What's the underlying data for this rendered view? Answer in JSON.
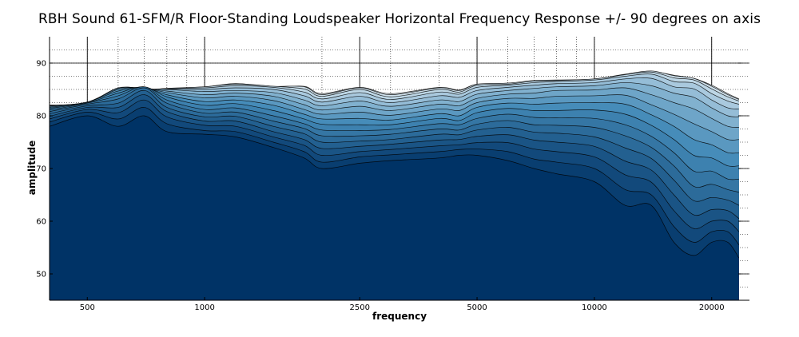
{
  "chart_data": {
    "type": "area",
    "title": "RBH Sound 61-SFM/R Floor-Standing Loudspeaker Horizontal Frequency Response +/- 90 degrees on axis",
    "xlabel": "frequency",
    "ylabel": "amplitude",
    "x_scale": "log",
    "xlim": [
      400,
      25000
    ],
    "ylim": [
      45,
      95
    ],
    "x_ticks": [
      500,
      1000,
      2500,
      5000,
      10000,
      20000
    ],
    "x_tick_labels": [
      "500",
      "1000",
      "2500",
      "5000",
      "10000",
      "20000"
    ],
    "y_ticks": [
      50,
      60,
      70,
      80,
      90
    ],
    "y_tick_labels": [
      "50",
      "60",
      "70",
      "80",
      "90"
    ],
    "grid": true,
    "colors": {
      "front": "#003366",
      "back": "#e4eef4",
      "line": "#000000"
    },
    "freqs": [
      400,
      500,
      600,
      700,
      800,
      1000,
      1200,
      1500,
      1800,
      2000,
      2500,
      3000,
      4000,
      4500,
      5000,
      6000,
      7000,
      8000,
      10000,
      12000,
      14000,
      16000,
      18000,
      20000,
      22000,
      23500
    ],
    "series": [
      {
        "values": [
          78,
          80,
          78,
          80,
          77,
          76.5,
          76,
          74,
          72,
          70,
          71,
          71.5,
          72,
          72.5,
          72.5,
          71.5,
          70,
          69,
          67.5,
          63,
          63,
          56,
          53.5,
          56,
          56,
          53
        ]
      },
      {
        "values": [
          78.8,
          80.7,
          79.4,
          81.6,
          78.5,
          77.2,
          77,
          75,
          73.2,
          71.2,
          72.2,
          72.6,
          73.2,
          73.6,
          73.7,
          73.2,
          71.8,
          71.2,
          70,
          66,
          65,
          59,
          56,
          58,
          58,
          55.5
        ]
      },
      {
        "values": [
          79.4,
          81.2,
          80.6,
          83,
          79.8,
          78.2,
          78,
          76,
          74.4,
          72.5,
          73.2,
          73.6,
          74.3,
          74.5,
          74.9,
          74.9,
          73.7,
          73.2,
          72.2,
          68.8,
          67.4,
          62,
          58.6,
          60,
          60,
          58
        ]
      },
      {
        "values": [
          79.9,
          81.6,
          81.6,
          84,
          80.8,
          79,
          79,
          77,
          75.5,
          73.8,
          74.2,
          74.6,
          75.4,
          75.5,
          76.1,
          76.4,
          75.4,
          75,
          74.2,
          71.4,
          69.7,
          65,
          61.2,
          62.2,
          62,
          60.5
        ]
      },
      {
        "values": [
          80.4,
          81.9,
          82.4,
          84.8,
          81.6,
          79.8,
          79.9,
          78,
          76.6,
          75,
          75.2,
          75.5,
          76.5,
          76.4,
          77.3,
          77.8,
          76.9,
          76.7,
          76,
          73.9,
          71.9,
          67.8,
          63.9,
          64.5,
          64,
          63
        ]
      },
      {
        "values": [
          80.8,
          82.2,
          83.2,
          85.3,
          82.4,
          80.5,
          80.7,
          79,
          77.6,
          76.2,
          76.2,
          76.5,
          77.5,
          77.3,
          78.4,
          79.1,
          78.3,
          78.2,
          77.8,
          76.2,
          74,
          70.5,
          66.6,
          67,
          66,
          65.5
        ]
      },
      {
        "values": [
          81.1,
          82.4,
          83.8,
          85.5,
          83,
          81.2,
          81.5,
          80,
          78.5,
          77.3,
          77.2,
          77.4,
          78.5,
          78.3,
          79.5,
          80.3,
          79.7,
          79.6,
          79.5,
          78.3,
          76.1,
          73,
          69.5,
          69.5,
          68,
          68
        ]
      },
      {
        "values": [
          81.4,
          82.5,
          84.3,
          85.5,
          83.6,
          82,
          82.3,
          81,
          79.4,
          78.4,
          78.3,
          78.3,
          79.5,
          79.1,
          80.6,
          81.4,
          81,
          81,
          81.1,
          80.3,
          78.2,
          75.5,
          72.5,
          72,
          70.5,
          70.5
        ]
      },
      {
        "values": [
          81.6,
          82.6,
          84.7,
          85.4,
          84,
          82.7,
          83,
          82,
          80.3,
          79.4,
          79.5,
          79.2,
          80.4,
          80,
          81.6,
          82.4,
          82.2,
          82.4,
          82.5,
          82.2,
          80.2,
          78,
          75.5,
          74.5,
          73,
          73
        ]
      },
      {
        "values": [
          81.8,
          82.6,
          85,
          85.3,
          84.4,
          83.4,
          83.7,
          82.9,
          81.2,
          80.3,
          80.7,
          80.1,
          81.3,
          81,
          82.5,
          83.3,
          83.3,
          83.7,
          83.8,
          83.9,
          82.1,
          80.3,
          78.5,
          77,
          75.5,
          75.5
        ]
      },
      {
        "values": [
          81.9,
          82.6,
          85.2,
          85.2,
          84.7,
          84,
          84.3,
          83.7,
          82.1,
          81.1,
          81.8,
          81,
          82.2,
          81.9,
          83.3,
          84.1,
          84.3,
          84.8,
          84.9,
          85.3,
          84,
          82.5,
          81.3,
          79.5,
          78,
          77.8
        ]
      },
      {
        "values": [
          82,
          82.5,
          85.3,
          85.1,
          85,
          84.6,
          84.8,
          84.4,
          83,
          81.9,
          82.8,
          81.8,
          83,
          82.7,
          84.1,
          84.8,
          85.2,
          85.5,
          85.7,
          86.3,
          85.7,
          84.3,
          83.5,
          81.5,
          80,
          79.8
        ]
      },
      {
        "values": [
          82,
          82.4,
          85.2,
          85,
          85.1,
          85,
          85.3,
          85,
          83.8,
          82.6,
          83.7,
          82.5,
          83.8,
          83.5,
          84.8,
          85.4,
          85.8,
          86.1,
          86.3,
          87,
          87.1,
          85.5,
          85.1,
          83,
          81.5,
          81.3
        ]
      },
      {
        "values": [
          82,
          82.3,
          85.1,
          84.9,
          85.2,
          85.3,
          85.7,
          85.4,
          84.5,
          83.2,
          84.4,
          83.1,
          84.5,
          84.1,
          85.4,
          85.8,
          86.3,
          86.5,
          86.8,
          87.5,
          87.9,
          86.5,
          86.2,
          84.2,
          82.8,
          82.2
        ]
      },
      {
        "values": [
          82,
          82.2,
          84.9,
          84.8,
          85.2,
          85.5,
          86,
          85.6,
          85.1,
          83.7,
          85,
          83.6,
          85,
          84.5,
          85.8,
          86,
          86.6,
          86.7,
          87,
          87.8,
          88.3,
          87.2,
          86.8,
          85.1,
          83.6,
          82.8
        ]
      },
      {
        "values": [
          82,
          82.2,
          84.7,
          84.7,
          85.1,
          85.5,
          86.1,
          85.6,
          85.5,
          84,
          85.3,
          84,
          85.3,
          84.8,
          86,
          86.2,
          86.7,
          86.8,
          87,
          87.9,
          88.5,
          87.6,
          87.1,
          85.6,
          84,
          83.1
        ]
      },
      {
        "values": [
          82,
          82.2,
          84.6,
          84.6,
          85,
          85.4,
          86.1,
          85.5,
          85.6,
          84.2,
          85.4,
          84.2,
          85.4,
          84.9,
          86,
          86.2,
          86.6,
          86.7,
          86.9,
          87.8,
          88.4,
          87.7,
          87.1,
          85.8,
          84.2,
          83.2
        ]
      }
    ]
  }
}
